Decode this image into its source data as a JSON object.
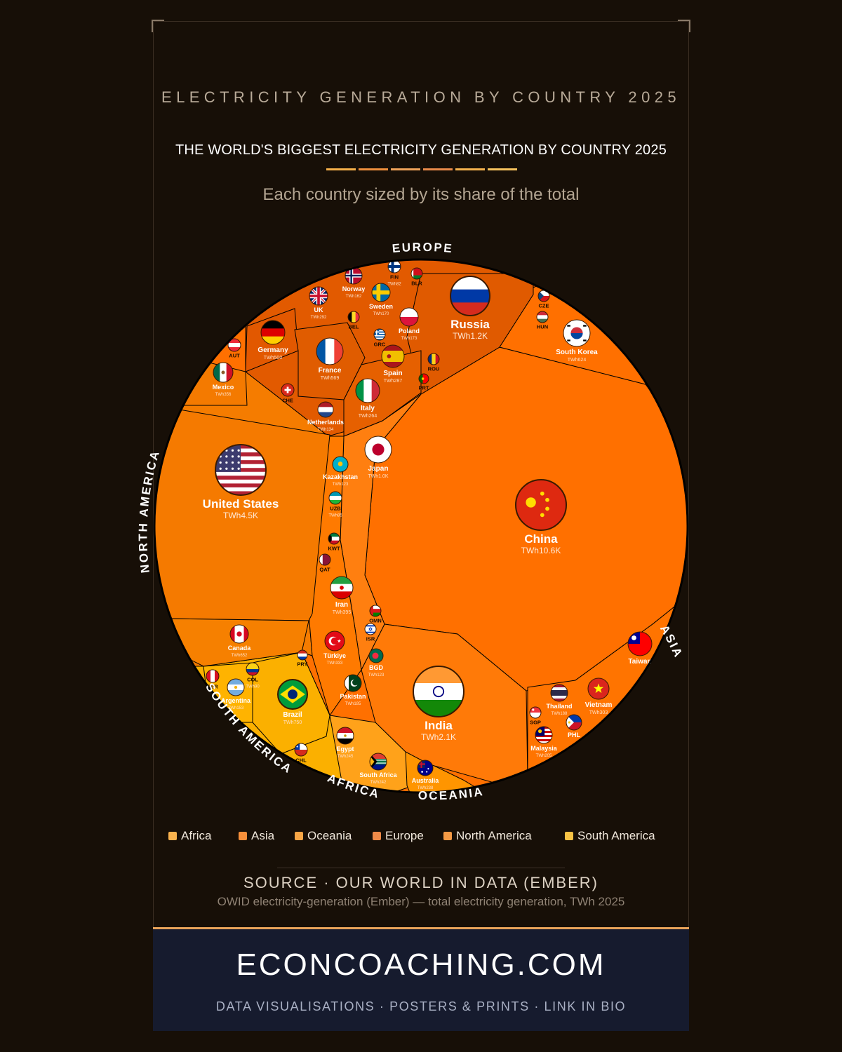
{
  "kicker": "ELECTRICITY GENERATION BY COUNTRY 2025",
  "title": "THE WORLD'S BIGGEST ELECTRICITY GENERATION BY COUNTRY 2025",
  "subtitle": "Each country sized by its share of the total",
  "colors": {
    "background": "#170f07",
    "asia": "#ff7000",
    "north_america": "#f57c00",
    "europe": "#e25a00",
    "south_america": "#fbb000",
    "africa": "#ffa21a",
    "oceania": "#ff9500",
    "rule": [
      "#f5b04a",
      "#ee8f3d",
      "#f0a35a",
      "#e98a4a",
      "#f4b24e",
      "#f7c35e"
    ]
  },
  "chart_data": {
    "type": "voronoi-treemap",
    "unit": "TWh",
    "regions": [
      "EUROPE",
      "NORTH AMERICA",
      "SOUTH AMERICA",
      "AFRICA",
      "OCEANIA",
      "ASIA"
    ],
    "legend": [
      {
        "label": "Africa",
        "color": "#f9b24e"
      },
      {
        "label": "Asia",
        "color": "#f78f3a"
      },
      {
        "label": "Oceania",
        "color": "#f7a545"
      },
      {
        "label": "Europe",
        "color": "#ef8a48"
      },
      {
        "label": "North America",
        "color": "#f49a45"
      },
      {
        "label": "South America",
        "color": "#f7c244"
      }
    ],
    "countries": [
      {
        "name": "China",
        "value": "TWh10.6K",
        "region": "Asia"
      },
      {
        "name": "United States",
        "value": "TWh4.5K",
        "region": "North America"
      },
      {
        "name": "India",
        "value": "TWh2.1K",
        "region": "Asia"
      },
      {
        "name": "Russia",
        "value": "TWh1.2K",
        "region": "Europe"
      },
      {
        "name": "Japan",
        "value": "TWh1.0K",
        "region": "Asia"
      },
      {
        "name": "Brazil",
        "value": "TWh750",
        "region": "South America"
      },
      {
        "name": "Canada",
        "value": "TWh652",
        "region": "North America"
      },
      {
        "name": "South Korea",
        "value": "TWh624",
        "region": "Asia"
      },
      {
        "name": "Germany",
        "value": "TWh500",
        "region": "Europe"
      },
      {
        "name": "France",
        "value": "TWh569",
        "region": "Europe"
      },
      {
        "name": "Iran",
        "value": "TWh395",
        "region": "Asia"
      },
      {
        "name": "Mexico",
        "value": "TWh356",
        "region": "North America"
      },
      {
        "name": "Vietnam",
        "value": "TWh303",
        "region": "Asia"
      },
      {
        "name": "UK",
        "value": "TWh292",
        "region": "Europe"
      },
      {
        "name": "Spain",
        "value": "TWh287",
        "region": "Europe"
      },
      {
        "name": "Italy",
        "value": "TWh264",
        "region": "Europe"
      },
      {
        "name": "Egypt",
        "value": "TWh245",
        "region": "Africa"
      },
      {
        "name": "South Africa",
        "value": "TWh242",
        "region": "Africa"
      },
      {
        "name": "Australia",
        "value": "TWh238",
        "region": "Oceania"
      },
      {
        "name": "Malaysia",
        "value": "TWh205",
        "region": "Asia"
      },
      {
        "name": "Thailand",
        "value": "TWh188",
        "region": "Asia"
      },
      {
        "name": "Pakistan",
        "value": "TWh185",
        "region": "Asia"
      },
      {
        "name": "Poland",
        "value": "TWh173",
        "region": "Europe"
      },
      {
        "name": "Sweden",
        "value": "TWh170",
        "region": "Europe"
      },
      {
        "name": "Norway",
        "value": "TWh162",
        "region": "Europe"
      },
      {
        "name": "Argentina",
        "value": "TWh153",
        "region": "South America"
      },
      {
        "name": "Türkiye",
        "value": "TWh333",
        "region": "Asia"
      },
      {
        "name": "Netherlands",
        "value": "TWh134",
        "region": "Europe"
      },
      {
        "name": "Kazakhstan",
        "value": "TWh123",
        "region": "Asia"
      },
      {
        "name": "BGD",
        "value": "TWh123",
        "region": "Asia"
      },
      {
        "name": "COL",
        "value": "TWh90",
        "region": "South America"
      },
      {
        "name": "UZB",
        "value": "TWh85",
        "region": "Asia"
      },
      {
        "name": "FIN",
        "value": "TWh82",
        "region": "Europe"
      },
      {
        "name": "Taiwan",
        "value": "",
        "region": "Asia"
      },
      {
        "name": "CZE",
        "value": "",
        "region": "Europe"
      },
      {
        "name": "HUN",
        "value": "",
        "region": "Europe"
      },
      {
        "name": "BLR",
        "value": "",
        "region": "Europe"
      },
      {
        "name": "BEL",
        "value": "",
        "region": "Europe"
      },
      {
        "name": "GRC",
        "value": "",
        "region": "Europe"
      },
      {
        "name": "ROU",
        "value": "",
        "region": "Europe"
      },
      {
        "name": "PRT",
        "value": "",
        "region": "Europe"
      },
      {
        "name": "AUT",
        "value": "",
        "region": "Europe"
      },
      {
        "name": "CHE",
        "value": "",
        "region": "Europe"
      },
      {
        "name": "KWT",
        "value": "",
        "region": "Asia"
      },
      {
        "name": "QAT",
        "value": "",
        "region": "Asia"
      },
      {
        "name": "OMN",
        "value": "",
        "region": "Asia"
      },
      {
        "name": "ISR",
        "value": "",
        "region": "Asia"
      },
      {
        "name": "SGP",
        "value": "",
        "region": "Asia"
      },
      {
        "name": "PHL",
        "value": "",
        "region": "Asia"
      },
      {
        "name": "PER",
        "value": "",
        "region": "South America"
      },
      {
        "name": "PRY",
        "value": "",
        "region": "South America"
      },
      {
        "name": "CHL",
        "value": "",
        "region": "South America"
      }
    ]
  },
  "source": {
    "heading": "SOURCE · OUR WORLD IN DATA (EMBER)",
    "note": "OWID electricity-generation (Ember) — total electricity generation, TWh 2025"
  },
  "footer": {
    "brand": "ECONCOACHING.COM",
    "tagline": "DATA VISUALISATIONS · POSTERS & PRINTS · LINK IN BIO"
  }
}
